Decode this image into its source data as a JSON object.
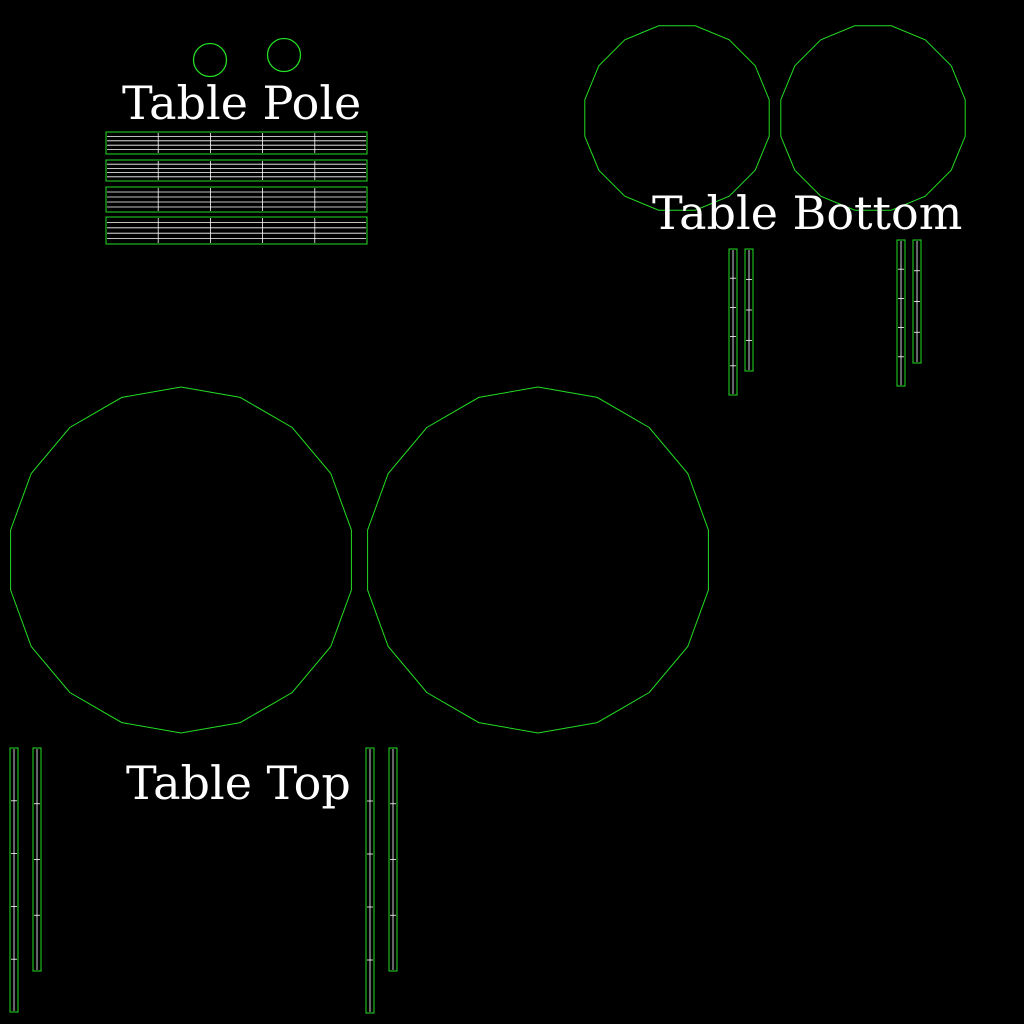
{
  "labels": {
    "table_pole": "Table Pole",
    "table_bottom": "Table Bottom",
    "table_top": "Table Top"
  },
  "colors": {
    "background": "#000000",
    "uv_edge": "#22dd22",
    "uv_inner_edge": "#ffffff",
    "label_text": "#ffffff"
  }
}
